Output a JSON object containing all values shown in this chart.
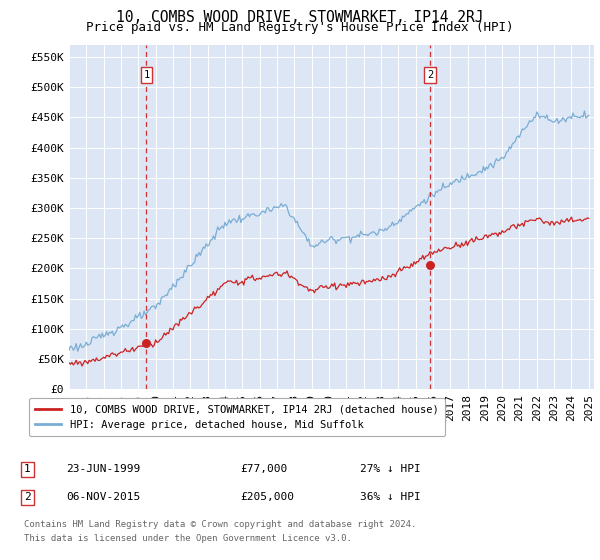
{
  "title": "10, COMBS WOOD DRIVE, STOWMARKET, IP14 2RJ",
  "subtitle": "Price paid vs. HM Land Registry's House Price Index (HPI)",
  "bg_color": "#dce6f5",
  "y_ticks": [
    0,
    50000,
    100000,
    150000,
    200000,
    250000,
    300000,
    350000,
    400000,
    450000,
    500000,
    550000
  ],
  "y_tick_labels": [
    "£0",
    "£50K",
    "£100K",
    "£150K",
    "£200K",
    "£250K",
    "£300K",
    "£350K",
    "£400K",
    "£450K",
    "£500K",
    "£550K"
  ],
  "ylim": [
    0,
    570000
  ],
  "hpi_color": "#7aadd4",
  "price_color": "#cc2222",
  "vline_color": "#cc3333",
  "legend_label_price": "10, COMBS WOOD DRIVE, STOWMARKET, IP14 2RJ (detached house)",
  "legend_label_hpi": "HPI: Average price, detached house, Mid Suffolk",
  "annotation1_date": "23-JUN-1999",
  "annotation1_price": "£77,000",
  "annotation1_hpi": "27% ↓ HPI",
  "annotation1_year": 1999.47,
  "annotation2_date": "06-NOV-2015",
  "annotation2_price": "£205,000",
  "annotation2_hpi": "36% ↓ HPI",
  "annotation2_year": 2015.84,
  "sale1_year": 1999.47,
  "sale1_price": 77000,
  "sale2_year": 2015.84,
  "sale2_price": 205000,
  "footnote_line1": "Contains HM Land Registry data © Crown copyright and database right 2024.",
  "footnote_line2": "This data is licensed under the Open Government Licence v3.0.",
  "title_fontsize": 10.5,
  "subtitle_fontsize": 9,
  "tick_fontsize": 8,
  "legend_fontsize": 7.5,
  "footnote_fontsize": 6.5
}
